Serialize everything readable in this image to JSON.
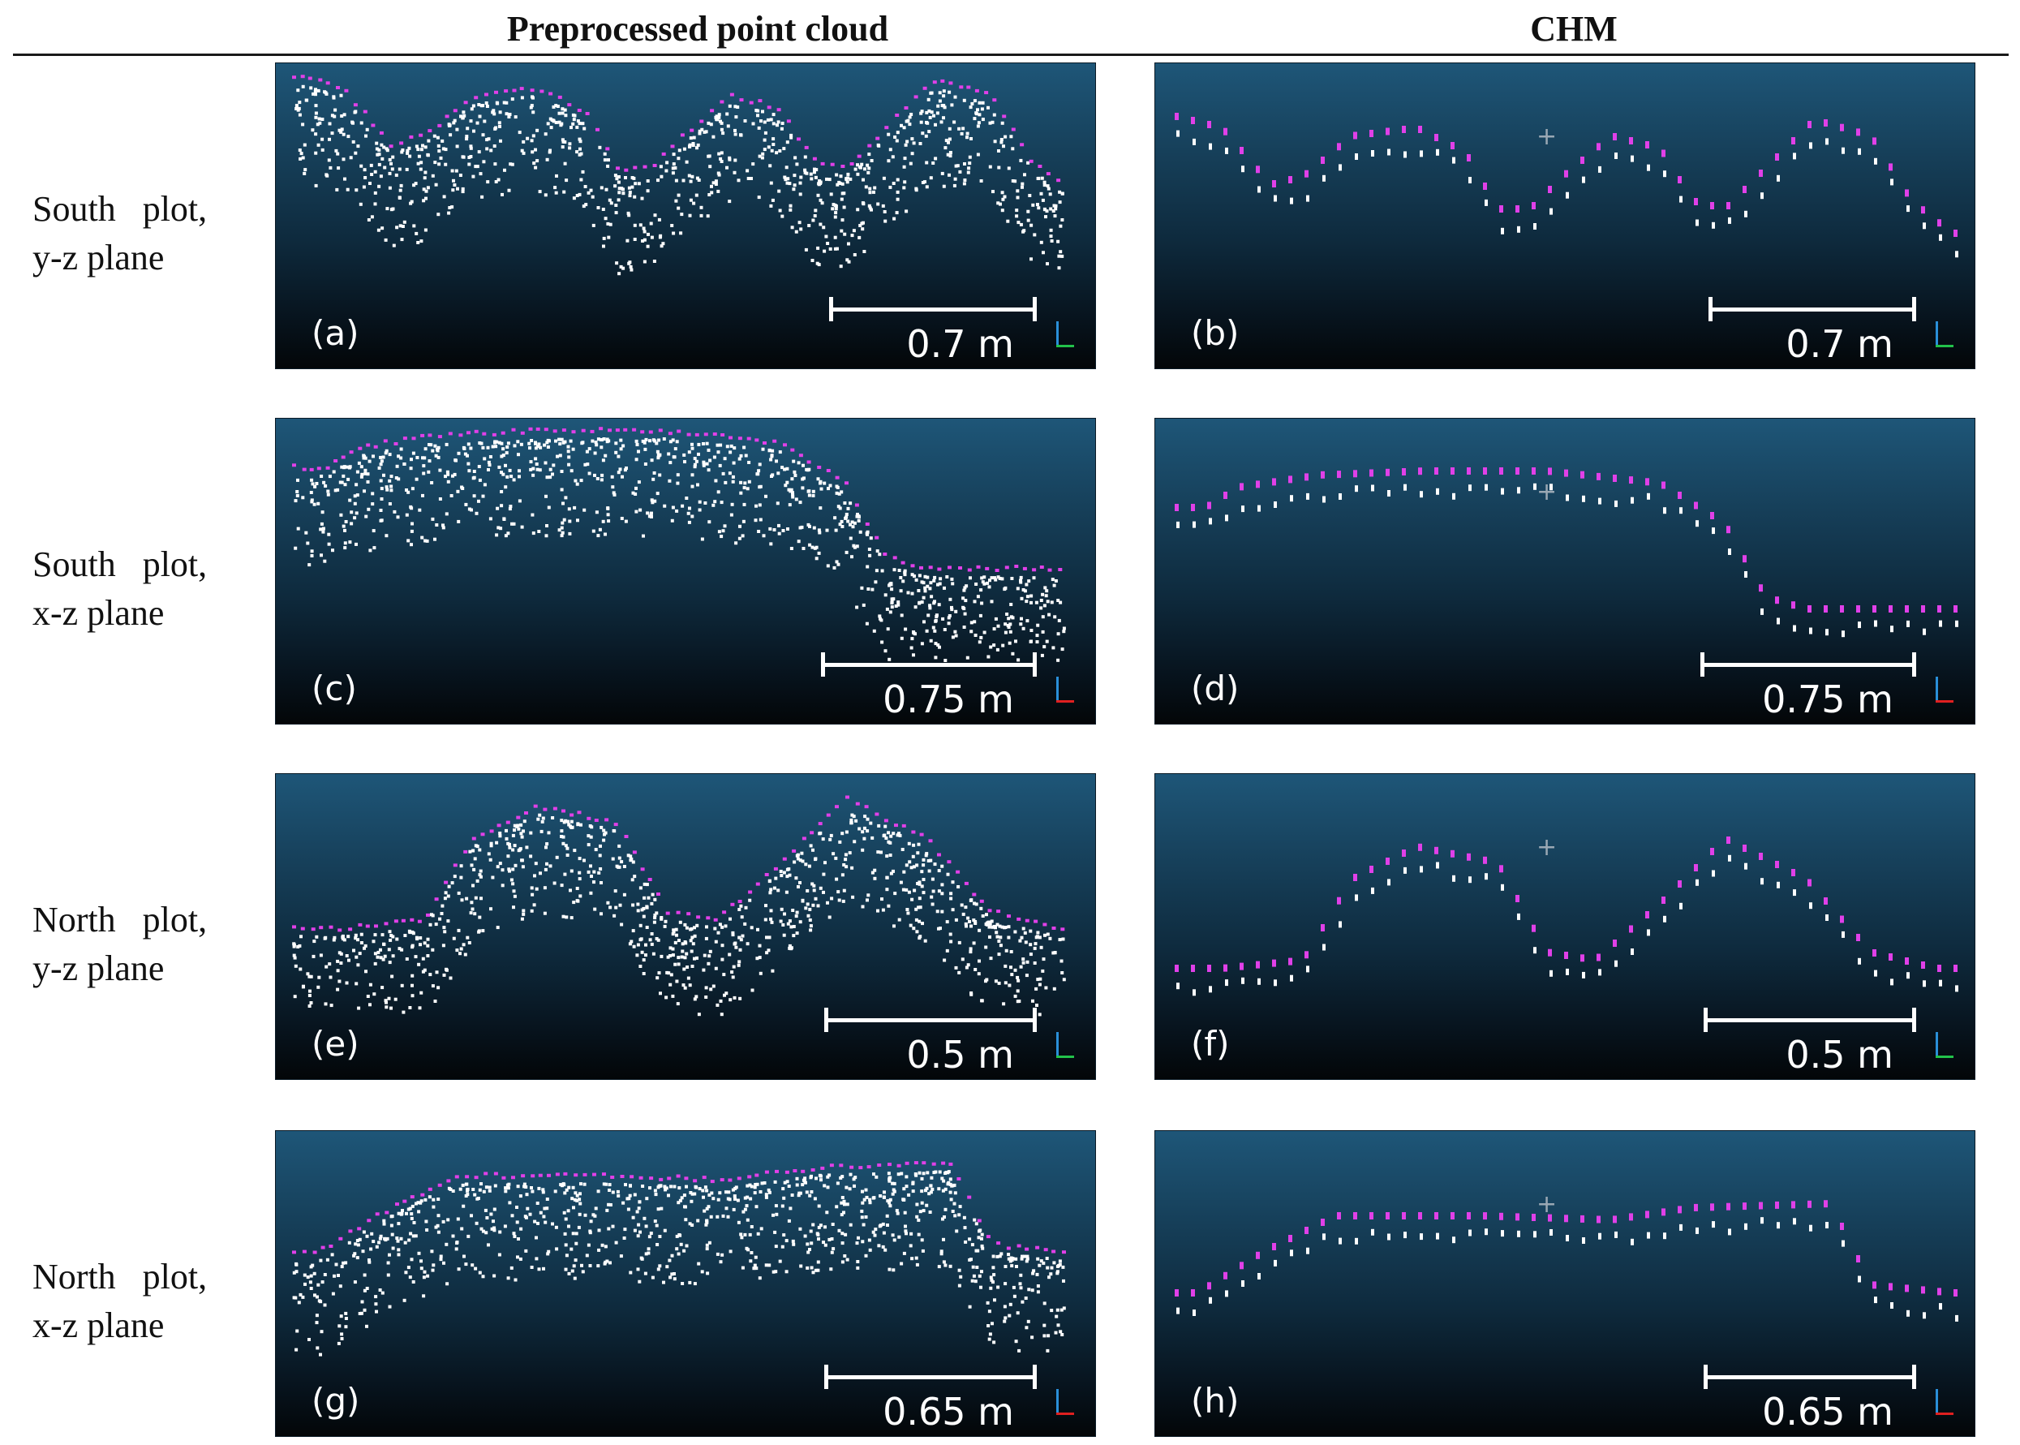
{
  "headers": {
    "left": "Preprocessed point cloud",
    "right": "CHM"
  },
  "rows": [
    {
      "line1": "South   plot,",
      "line2": "y-z plane"
    },
    {
      "line1": "South   plot,",
      "line2": "x-z plane"
    },
    {
      "line1": "North   plot,",
      "line2": "y-z plane"
    },
    {
      "line1": "North   plot,",
      "line2": "x-z plane"
    }
  ],
  "panels": [
    {
      "label": "(a)",
      "scale": "0.7 m",
      "kind": "cloud",
      "profile": "yz_south",
      "axis_color": "#22c24a",
      "point_colors": {
        "points": "#ffffff",
        "top": "#e040e8"
      }
    },
    {
      "label": "(b)",
      "scale": "0.7 m",
      "kind": "chm",
      "profile": "yz_south",
      "axis_color": "#22c24a",
      "point_colors": {
        "points": "#ffffff",
        "top": "#e040e8"
      }
    },
    {
      "label": "(c)",
      "scale": "0.75 m",
      "kind": "cloud",
      "profile": "xz_south",
      "axis_color": "#e02020",
      "point_colors": {
        "points": "#ffffff",
        "top": "#e040e8"
      }
    },
    {
      "label": "(d)",
      "scale": "0.75 m",
      "kind": "chm",
      "profile": "xz_south",
      "axis_color": "#e02020",
      "point_colors": {
        "points": "#ffffff",
        "top": "#e040e8"
      }
    },
    {
      "label": "(e)",
      "scale": "0.5 m",
      "kind": "cloud",
      "profile": "yz_north",
      "axis_color": "#22c24a",
      "point_colors": {
        "points": "#ffffff",
        "top": "#e040e8"
      }
    },
    {
      "label": "(f)",
      "scale": "0.5 m",
      "kind": "chm",
      "profile": "yz_north",
      "axis_color": "#22c24a",
      "point_colors": {
        "points": "#ffffff",
        "top": "#e040e8"
      }
    },
    {
      "label": "(g)",
      "scale": "0.65 m",
      "kind": "cloud",
      "profile": "xz_north",
      "axis_color": "#e02020",
      "point_colors": {
        "points": "#ffffff",
        "top": "#e040e8"
      }
    },
    {
      "label": "(h)",
      "scale": "0.65 m",
      "kind": "chm",
      "profile": "xz_north",
      "axis_color": "#e02020",
      "point_colors": {
        "points": "#ffffff",
        "top": "#e040e8"
      }
    }
  ]
}
